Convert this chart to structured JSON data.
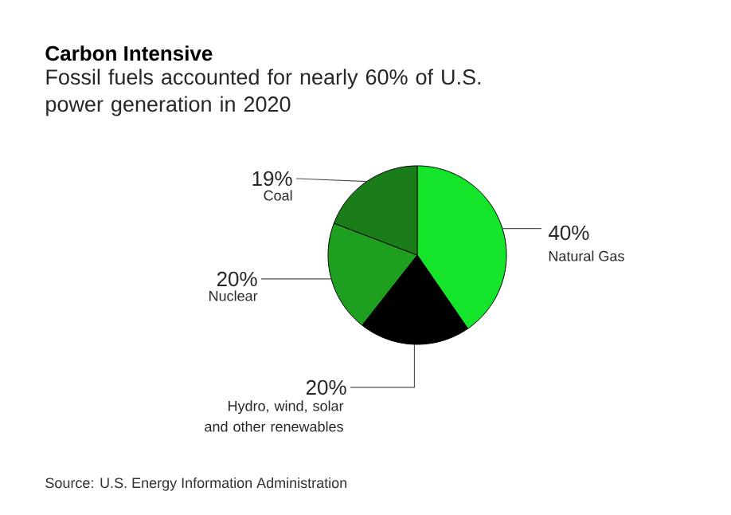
{
  "chart_data": {
    "type": "pie",
    "title": "Carbon Intensive",
    "subtitle": "Fossil fuels accounted for nearly 60% of U.S. power generation in 2020",
    "categories": [
      "Natural Gas",
      "Hydro, wind, solar and other renewables",
      "Nuclear",
      "Coal"
    ],
    "values": [
      40,
      20,
      20,
      19
    ],
    "value_labels": [
      "40%",
      "20%",
      "20%",
      "19%"
    ],
    "colors": [
      "#14e52a",
      "#000000",
      "#1f9f1f",
      "#1a7d1a"
    ],
    "annotations": [
      "Source: U.S. Energy Information Administration"
    ]
  }
}
